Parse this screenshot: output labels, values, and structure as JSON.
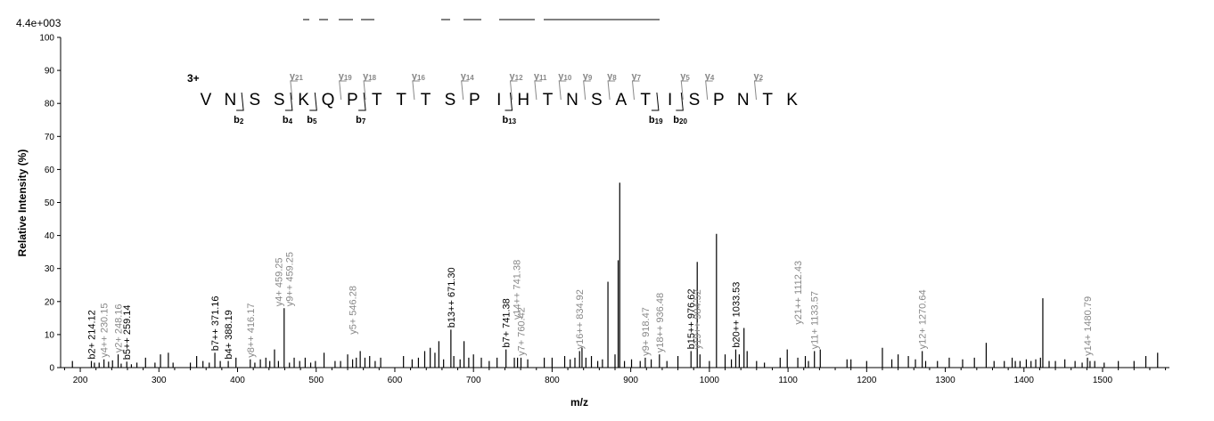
{
  "chart_data": {
    "type": "bar",
    "scale_label": "4.4e+003",
    "xlabel": "m/z",
    "ylabel": "Relative   Intensity (%)",
    "xlim": [
      175,
      1585
    ],
    "ylim": [
      0,
      100
    ],
    "x_ticks": [
      200,
      300,
      400,
      500,
      600,
      700,
      800,
      900,
      1000,
      1100,
      1200,
      1300,
      1400,
      1500
    ],
    "y_ticks": [
      0,
      10,
      20,
      30,
      40,
      50,
      60,
      70,
      80,
      90,
      100
    ],
    "peaks": [
      {
        "x": 190,
        "y": 2
      },
      {
        "x": 214.12,
        "y": 2
      },
      {
        "x": 218,
        "y": 1.5
      },
      {
        "x": 224,
        "y": 1.5
      },
      {
        "x": 230.15,
        "y": 2.5
      },
      {
        "x": 236,
        "y": 1.8
      },
      {
        "x": 241,
        "y": 2.2
      },
      {
        "x": 248.16,
        "y": 4
      },
      {
        "x": 252,
        "y": 1.2
      },
      {
        "x": 259.14,
        "y": 1.8
      },
      {
        "x": 265,
        "y": 1
      },
      {
        "x": 272,
        "y": 1.5
      },
      {
        "x": 283,
        "y": 3
      },
      {
        "x": 295,
        "y": 1.5
      },
      {
        "x": 302,
        "y": 4
      },
      {
        "x": 312,
        "y": 4.5
      },
      {
        "x": 318,
        "y": 1.5
      },
      {
        "x": 340,
        "y": 1.5
      },
      {
        "x": 348,
        "y": 3.5
      },
      {
        "x": 356,
        "y": 2
      },
      {
        "x": 364,
        "y": 1.5
      },
      {
        "x": 371.16,
        "y": 4.5
      },
      {
        "x": 378,
        "y": 2
      },
      {
        "x": 388.19,
        "y": 2
      },
      {
        "x": 398,
        "y": 3
      },
      {
        "x": 416.17,
        "y": 2.5
      },
      {
        "x": 422,
        "y": 1.5
      },
      {
        "x": 429,
        "y": 2.5
      },
      {
        "x": 436,
        "y": 3
      },
      {
        "x": 441,
        "y": 2
      },
      {
        "x": 447,
        "y": 5.5
      },
      {
        "x": 452,
        "y": 2
      },
      {
        "x": 459.25,
        "y": 18
      },
      {
        "x": 466,
        "y": 1.5
      },
      {
        "x": 472,
        "y": 3
      },
      {
        "x": 479,
        "y": 2
      },
      {
        "x": 486,
        "y": 3
      },
      {
        "x": 493,
        "y": 1.5
      },
      {
        "x": 499,
        "y": 2
      },
      {
        "x": 510,
        "y": 4.5
      },
      {
        "x": 524,
        "y": 2
      },
      {
        "x": 531,
        "y": 2
      },
      {
        "x": 540,
        "y": 4
      },
      {
        "x": 546.28,
        "y": 2.5
      },
      {
        "x": 551,
        "y": 3
      },
      {
        "x": 556,
        "y": 5
      },
      {
        "x": 562,
        "y": 3
      },
      {
        "x": 568,
        "y": 3.5
      },
      {
        "x": 575,
        "y": 2
      },
      {
        "x": 582,
        "y": 3
      },
      {
        "x": 611,
        "y": 3.5
      },
      {
        "x": 622,
        "y": 2.5
      },
      {
        "x": 630,
        "y": 3
      },
      {
        "x": 638,
        "y": 5
      },
      {
        "x": 645,
        "y": 6
      },
      {
        "x": 651,
        "y": 4.5
      },
      {
        "x": 656,
        "y": 8
      },
      {
        "x": 662,
        "y": 2.5
      },
      {
        "x": 671.3,
        "y": 11.5
      },
      {
        "x": 675,
        "y": 3.5
      },
      {
        "x": 683,
        "y": 2.5
      },
      {
        "x": 688,
        "y": 8
      },
      {
        "x": 694,
        "y": 3
      },
      {
        "x": 700,
        "y": 4
      },
      {
        "x": 710,
        "y": 3
      },
      {
        "x": 720,
        "y": 2
      },
      {
        "x": 730,
        "y": 3
      },
      {
        "x": 741.38,
        "y": 5.5
      },
      {
        "x": 752,
        "y": 3
      },
      {
        "x": 756,
        "y": 3
      },
      {
        "x": 760.42,
        "y": 3
      },
      {
        "x": 769,
        "y": 2.5
      },
      {
        "x": 790,
        "y": 3
      },
      {
        "x": 800,
        "y": 3
      },
      {
        "x": 816,
        "y": 3.5
      },
      {
        "x": 823,
        "y": 2.5
      },
      {
        "x": 829,
        "y": 3
      },
      {
        "x": 834.92,
        "y": 5
      },
      {
        "x": 838,
        "y": 6
      },
      {
        "x": 843,
        "y": 3
      },
      {
        "x": 850,
        "y": 3.5
      },
      {
        "x": 858,
        "y": 2
      },
      {
        "x": 864,
        "y": 2.5
      },
      {
        "x": 871,
        "y": 26
      },
      {
        "x": 880,
        "y": 4
      },
      {
        "x": 884,
        "y": 32.5
      },
      {
        "x": 886,
        "y": 56
      },
      {
        "x": 892,
        "y": 2
      },
      {
        "x": 901,
        "y": 2.5
      },
      {
        "x": 912,
        "y": 2
      },
      {
        "x": 918.47,
        "y": 3
      },
      {
        "x": 926,
        "y": 2.5
      },
      {
        "x": 936.48,
        "y": 4
      },
      {
        "x": 946,
        "y": 2
      },
      {
        "x": 960,
        "y": 3.5
      },
      {
        "x": 976.62,
        "y": 5
      },
      {
        "x": 984.52,
        "y": 32
      },
      {
        "x": 988,
        "y": 4
      },
      {
        "x": 1000,
        "y": 2
      },
      {
        "x": 1009,
        "y": 40.5
      },
      {
        "x": 1020,
        "y": 4
      },
      {
        "x": 1028,
        "y": 2.5
      },
      {
        "x": 1033.53,
        "y": 5.5
      },
      {
        "x": 1038,
        "y": 4
      },
      {
        "x": 1044,
        "y": 12
      },
      {
        "x": 1048,
        "y": 5
      },
      {
        "x": 1060,
        "y": 2
      },
      {
        "x": 1070,
        "y": 1.5
      },
      {
        "x": 1090,
        "y": 3
      },
      {
        "x": 1099,
        "y": 5.5
      },
      {
        "x": 1112.43,
        "y": 3
      },
      {
        "x": 1122,
        "y": 3.5
      },
      {
        "x": 1126,
        "y": 2
      },
      {
        "x": 1133.57,
        "y": 5
      },
      {
        "x": 1141,
        "y": 5.5
      },
      {
        "x": 1175,
        "y": 2.5
      },
      {
        "x": 1180,
        "y": 2.5
      },
      {
        "x": 1200,
        "y": 2
      },
      {
        "x": 1220,
        "y": 6
      },
      {
        "x": 1232,
        "y": 2.5
      },
      {
        "x": 1240,
        "y": 4
      },
      {
        "x": 1253,
        "y": 3.5
      },
      {
        "x": 1262,
        "y": 2.5
      },
      {
        "x": 1270.64,
        "y": 5
      },
      {
        "x": 1275,
        "y": 2
      },
      {
        "x": 1290,
        "y": 2
      },
      {
        "x": 1305,
        "y": 3
      },
      {
        "x": 1322,
        "y": 2.5
      },
      {
        "x": 1337,
        "y": 3
      },
      {
        "x": 1352,
        "y": 7.5
      },
      {
        "x": 1362,
        "y": 2
      },
      {
        "x": 1375,
        "y": 2
      },
      {
        "x": 1385,
        "y": 3
      },
      {
        "x": 1389,
        "y": 2
      },
      {
        "x": 1395,
        "y": 2
      },
      {
        "x": 1403,
        "y": 2.5
      },
      {
        "x": 1409,
        "y": 2
      },
      {
        "x": 1415,
        "y": 2.5
      },
      {
        "x": 1421,
        "y": 3
      },
      {
        "x": 1424,
        "y": 21
      },
      {
        "x": 1432,
        "y": 2
      },
      {
        "x": 1440,
        "y": 2
      },
      {
        "x": 1452,
        "y": 2.5
      },
      {
        "x": 1465,
        "y": 2
      },
      {
        "x": 1474,
        "y": 1.5
      },
      {
        "x": 1480.79,
        "y": 3
      },
      {
        "x": 1484,
        "y": 2
      },
      {
        "x": 1490,
        "y": 2
      },
      {
        "x": 1502,
        "y": 1.5
      },
      {
        "x": 1520,
        "y": 2
      },
      {
        "x": 1540,
        "y": 2
      },
      {
        "x": 1555,
        "y": 3.5
      },
      {
        "x": 1570,
        "y": 4.5
      }
    ],
    "annotations": [
      {
        "label": "b2+ 214.12",
        "x": 214.12,
        "y": 2,
        "ion": "b"
      },
      {
        "label": "y4++ 230.15",
        "x": 230.15,
        "y": 2.5,
        "ion": "y"
      },
      {
        "label": "y2+ 248.16",
        "x": 248.16,
        "y": 4,
        "ion": "y"
      },
      {
        "label": "b5++ 259.14",
        "x": 259.14,
        "y": 1.8,
        "ion": "b"
      },
      {
        "label": "b7++ 371.16",
        "x": 371.16,
        "y": 4.5,
        "ion": "b"
      },
      {
        "label": "b4+ 388.19",
        "x": 388.19,
        "y": 2,
        "ion": "b"
      },
      {
        "label": "y8++ 416.17",
        "x": 416.17,
        "y": 2.5,
        "ion": "y"
      },
      {
        "label": "y4+ 459.25",
        "x": 452,
        "y": 18,
        "ion": "y"
      },
      {
        "label": "y9++ 459.25",
        "x": 466,
        "y": 18,
        "ion": "y"
      },
      {
        "label": "y5+ 546.28",
        "x": 546.28,
        "y": 9.5,
        "ion": "y"
      },
      {
        "label": "b13++ 671.30",
        "x": 671.3,
        "y": 11.5,
        "ion": "b"
      },
      {
        "label": "b7+ 741.38",
        "x": 741.38,
        "y": 5.5,
        "ion": "b"
      },
      {
        "label": "y14++ 741.38",
        "x": 755,
        "y": 14,
        "ion": "y"
      },
      {
        "label": "y7+ 760.42",
        "x": 760.42,
        "y": 3,
        "ion": "y"
      },
      {
        "label": "y16++ 834.92",
        "x": 834.92,
        "y": 5,
        "ion": "y"
      },
      {
        "label": "y9+ 918.47",
        "x": 918.47,
        "y": 3,
        "ion": "y"
      },
      {
        "label": "y18++ 936.48",
        "x": 936.48,
        "y": 4,
        "ion": "y"
      },
      {
        "label": "b15++ 976.62",
        "x": 976.62,
        "y": 5,
        "ion": "b"
      },
      {
        "label": "y19++ 984.52",
        "x": 984.52,
        "y": 5,
        "ion": "y"
      },
      {
        "label": "b20++ 1033.53",
        "x": 1033.53,
        "y": 5.5,
        "ion": "b"
      },
      {
        "label": "y21++ 1112.43",
        "x": 1112.43,
        "y": 12.5,
        "ion": "y"
      },
      {
        "label": "y11+ 1133.57",
        "x": 1133.57,
        "y": 5,
        "ion": "y"
      },
      {
        "label": "y12+ 1270.64",
        "x": 1270.64,
        "y": 5,
        "ion": "y"
      },
      {
        "label": "y14+ 1480.79",
        "x": 1480.79,
        "y": 3,
        "ion": "y"
      }
    ]
  },
  "peptide": {
    "charge": "3+",
    "residues": [
      "V",
      "N",
      "S",
      "S",
      "K",
      "Q",
      "P",
      "T",
      "T",
      "T",
      "S",
      "P",
      "I",
      "H",
      "T",
      "N",
      "S",
      "A",
      "T",
      "I",
      "S",
      "P",
      "N",
      "T",
      "K"
    ],
    "b_ions": [
      {
        "label": "b2",
        "after": 2
      },
      {
        "label": "b4",
        "after": 4
      },
      {
        "label": "b5",
        "after": 5
      },
      {
        "label": "b7",
        "after": 7
      },
      {
        "label": "b13",
        "after": 13
      },
      {
        "label": "b19",
        "after": 19
      },
      {
        "label": "b20",
        "after": 20
      }
    ],
    "y_ions": [
      {
        "label": "y21",
        "after": 4
      },
      {
        "label": "y19",
        "after": 6
      },
      {
        "label": "y18",
        "after": 7
      },
      {
        "label": "y16",
        "after": 9
      },
      {
        "label": "y14",
        "after": 11
      },
      {
        "label": "y12",
        "after": 13
      },
      {
        "label": "y11",
        "after": 14
      },
      {
        "label": "y10",
        "after": 15
      },
      {
        "label": "y9",
        "after": 16
      },
      {
        "label": "y8",
        "after": 17
      },
      {
        "label": "y7",
        "after": 18
      },
      {
        "label": "y5",
        "after": 20
      },
      {
        "label": "y4",
        "after": 21
      },
      {
        "label": "y2",
        "after": 23
      }
    ]
  }
}
